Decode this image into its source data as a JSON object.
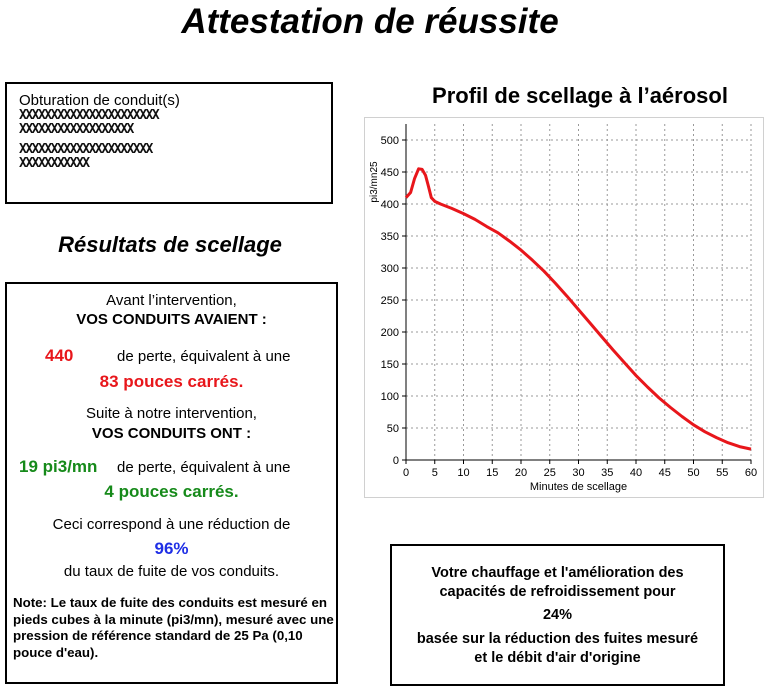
{
  "title": "Attestation de réussite",
  "obturation": {
    "label": "Obturation de conduit(s)",
    "lines": [
      "XXXXXXXXXXXXXXXXXXXXXX",
      "XXXXXXXXXXXXXXXXXX",
      "XXXXXXXXXXXXXXXXXXXXX",
      "XXXXXXXXXXX"
    ]
  },
  "resultats": {
    "heading": "Résultats de scellage",
    "avant_line1": "Avant l’intervention,",
    "avant_line2": "VOS CONDUITS AVAIENT :",
    "avant_value": "440",
    "avant_text": "de perte, équivalent à une",
    "avant_area": "83 pouces carrés.",
    "suite_line1": "Suite à notre intervention,",
    "suite_line2": "VOS CONDUITS ONT :",
    "suite_value": "19 pi3/mn",
    "suite_text": "de perte, équivalent à une",
    "suite_area": "4 pouces carrés.",
    "reduction_text": "Ceci correspond à une réduction de",
    "reduction_value": "96%",
    "reduction_tail": "du taux de fuite de vos conduits.",
    "note": "Note: Le taux de fuite des conduits est mesuré en pieds cubes à la minute (pi3/mn), mesuré avec une pression de référence standard de 25 Pa (0,10 pouce d'eau)."
  },
  "chart_title": "Profil de scellage à l’aérosol",
  "chart_data": {
    "type": "line",
    "xlabel": "Minutes de scellage",
    "ylabel": "pi3/mn25",
    "xlim": [
      0,
      60
    ],
    "ylim": [
      0,
      525
    ],
    "xticks": [
      0,
      5,
      10,
      15,
      20,
      25,
      30,
      35,
      40,
      45,
      50,
      55,
      60
    ],
    "yticks": [
      0,
      50,
      100,
      150,
      200,
      250,
      300,
      350,
      400,
      450,
      500
    ],
    "grid": true,
    "color": "#e8161b",
    "series": [
      {
        "x": [
          0,
          0.8,
          1.5,
          2.2,
          2.8,
          3.4,
          3.9,
          4.4,
          5,
          6,
          8,
          10,
          12,
          14,
          16,
          18,
          20,
          22,
          24,
          26,
          28,
          30,
          32,
          34,
          36,
          38,
          40,
          42,
          44,
          46,
          48,
          50,
          52,
          54,
          56,
          58,
          60
        ],
        "y": [
          410,
          418,
          440,
          455,
          454,
          445,
          428,
          410,
          404,
          400,
          393,
          385,
          376,
          365,
          355,
          342,
          328,
          312,
          295,
          276,
          256,
          235,
          214,
          193,
          172,
          152,
          132,
          114,
          97,
          82,
          68,
          55,
          44,
          35,
          27,
          21,
          17
        ]
      }
    ]
  },
  "votre": {
    "line1": "Votre chauffage et l'amélioration des capacités de refroidissement pour",
    "value": "24%",
    "line2": "basée sur la réduction des fuites mesuré et le débit d'air d'origine"
  }
}
